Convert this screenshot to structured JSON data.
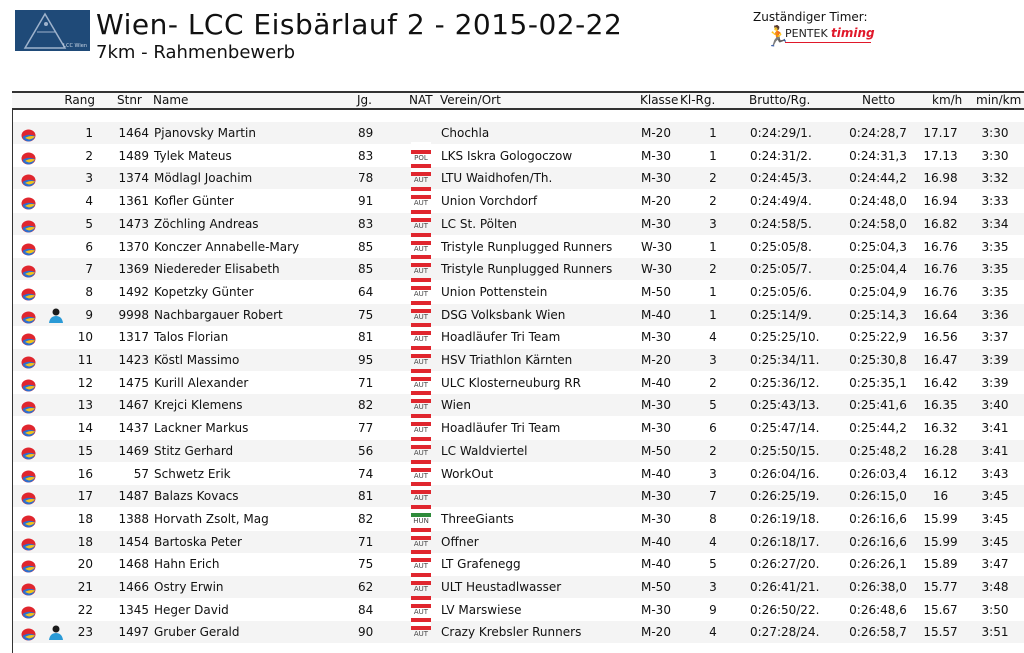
{
  "header": {
    "logo_text": "LCC Wien",
    "title": "Wien- LCC Eisbärlauf 2 - 2015-02-22",
    "subtitle": "7km - Rahmenbewerb",
    "timer_label": "Zuständiger Timer:",
    "timer_logo_text": "PENTEK timing"
  },
  "columns": [
    "Rang",
    "Stnr",
    "Name",
    "Jg.",
    "NAT",
    "Verein/Ort",
    "Klasse",
    "Kl-Rg.",
    "Brutto/Rg.",
    "Netto",
    "km/h",
    "min/km"
  ],
  "colors": {
    "AUT": "#e0262e",
    "POL": "#e0262e",
    "HUN": "#2e8b3a",
    "alt_row": "#f4f4f4"
  },
  "rows": [
    {
      "rang": "1",
      "stnr": "1464",
      "name": "Pjanovsky Martin",
      "jg": "89",
      "nat": "",
      "verein": "Chochla",
      "klasse": "M-20",
      "klrg": "1",
      "brutto": "0:24:29/1.",
      "netto": "0:24:28,7",
      "kmh": "17.17",
      "minkm": "3:30",
      "person": false
    },
    {
      "rang": "2",
      "stnr": "1489",
      "name": "Tylek Mateus",
      "jg": "83",
      "nat": "POL",
      "verein": "LKS Iskra Gologoczow",
      "klasse": "M-30",
      "klrg": "1",
      "brutto": "0:24:31/2.",
      "netto": "0:24:31,3",
      "kmh": "17.13",
      "minkm": "3:30",
      "person": false
    },
    {
      "rang": "3",
      "stnr": "1374",
      "name": "Mödlagl Joachim",
      "jg": "78",
      "nat": "AUT",
      "verein": "LTU Waidhofen/Th.",
      "klasse": "M-30",
      "klrg": "2",
      "brutto": "0:24:45/3.",
      "netto": "0:24:44,2",
      "kmh": "16.98",
      "minkm": "3:32",
      "person": false
    },
    {
      "rang": "4",
      "stnr": "1361",
      "name": "Kofler Günter",
      "jg": "91",
      "nat": "AUT",
      "verein": "Union Vorchdorf",
      "klasse": "M-20",
      "klrg": "2",
      "brutto": "0:24:49/4.",
      "netto": "0:24:48,0",
      "kmh": "16.94",
      "minkm": "3:33",
      "person": false
    },
    {
      "rang": "5",
      "stnr": "1473",
      "name": "Zöchling Andreas",
      "jg": "83",
      "nat": "AUT",
      "verein": "LC St. Pölten",
      "klasse": "M-30",
      "klrg": "3",
      "brutto": "0:24:58/5.",
      "netto": "0:24:58,0",
      "kmh": "16.82",
      "minkm": "3:34",
      "person": false
    },
    {
      "rang": "6",
      "stnr": "1370",
      "name": "Konczer Annabelle-Mary",
      "jg": "85",
      "nat": "AUT",
      "verein": "Tristyle Runplugged Runners",
      "klasse": "W-30",
      "klrg": "1",
      "brutto": "0:25:05/8.",
      "netto": "0:25:04,3",
      "kmh": "16.76",
      "minkm": "3:35",
      "person": false
    },
    {
      "rang": "7",
      "stnr": "1369",
      "name": "Niedereder Elisabeth",
      "jg": "85",
      "nat": "AUT",
      "verein": "Tristyle Runplugged Runners",
      "klasse": "W-30",
      "klrg": "2",
      "brutto": "0:25:05/7.",
      "netto": "0:25:04,4",
      "kmh": "16.76",
      "minkm": "3:35",
      "person": false
    },
    {
      "rang": "8",
      "stnr": "1492",
      "name": "Kopetzky Günter",
      "jg": "64",
      "nat": "AUT",
      "verein": "Union Pottenstein",
      "klasse": "M-50",
      "klrg": "1",
      "brutto": "0:25:05/6.",
      "netto": "0:25:04,9",
      "kmh": "16.76",
      "minkm": "3:35",
      "person": false
    },
    {
      "rang": "9",
      "stnr": "9998",
      "name": "Nachbargauer Robert",
      "jg": "75",
      "nat": "AUT",
      "verein": "DSG Volksbank Wien",
      "klasse": "M-40",
      "klrg": "1",
      "brutto": "0:25:14/9.",
      "netto": "0:25:14,3",
      "kmh": "16.64",
      "minkm": "3:36",
      "person": true
    },
    {
      "rang": "10",
      "stnr": "1317",
      "name": "Talos Florian",
      "jg": "81",
      "nat": "AUT",
      "verein": "Hoadläufer Tri Team",
      "klasse": "M-30",
      "klrg": "4",
      "brutto": "0:25:25/10.",
      "netto": "0:25:22,9",
      "kmh": "16.56",
      "minkm": "3:37",
      "person": false
    },
    {
      "rang": "11",
      "stnr": "1423",
      "name": "Köstl Massimo",
      "jg": "95",
      "nat": "AUT",
      "verein": "HSV Triathlon Kärnten",
      "klasse": "M-20",
      "klrg": "3",
      "brutto": "0:25:34/11.",
      "netto": "0:25:30,8",
      "kmh": "16.47",
      "minkm": "3:39",
      "person": false
    },
    {
      "rang": "12",
      "stnr": "1475",
      "name": "Kurill Alexander",
      "jg": "71",
      "nat": "AUT",
      "verein": "ULC Klosterneuburg RR",
      "klasse": "M-40",
      "klrg": "2",
      "brutto": "0:25:36/12.",
      "netto": "0:25:35,1",
      "kmh": "16.42",
      "minkm": "3:39",
      "person": false
    },
    {
      "rang": "13",
      "stnr": "1467",
      "name": "Krejci Klemens",
      "jg": "82",
      "nat": "AUT",
      "verein": "Wien",
      "klasse": "M-30",
      "klrg": "5",
      "brutto": "0:25:43/13.",
      "netto": "0:25:41,6",
      "kmh": "16.35",
      "minkm": "3:40",
      "person": false
    },
    {
      "rang": "14",
      "stnr": "1437",
      "name": "Lackner Markus",
      "jg": "77",
      "nat": "AUT",
      "verein": "Hoadläufer Tri Team",
      "klasse": "M-30",
      "klrg": "6",
      "brutto": "0:25:47/14.",
      "netto": "0:25:44,2",
      "kmh": "16.32",
      "minkm": "3:41",
      "person": false
    },
    {
      "rang": "15",
      "stnr": "1469",
      "name": "Stitz Gerhard",
      "jg": "56",
      "nat": "AUT",
      "verein": "LC Waldviertel",
      "klasse": "M-50",
      "klrg": "2",
      "brutto": "0:25:50/15.",
      "netto": "0:25:48,2",
      "kmh": "16.28",
      "minkm": "3:41",
      "person": false
    },
    {
      "rang": "16",
      "stnr": "57",
      "name": "Schwetz Erik",
      "jg": "74",
      "nat": "AUT",
      "verein": "WorkOut",
      "klasse": "M-40",
      "klrg": "3",
      "brutto": "0:26:04/16.",
      "netto": "0:26:03,4",
      "kmh": "16.12",
      "minkm": "3:43",
      "person": false
    },
    {
      "rang": "17",
      "stnr": "1487",
      "name": "Balazs Kovacs",
      "jg": "81",
      "nat": "AUT",
      "verein": "",
      "klasse": "M-30",
      "klrg": "7",
      "brutto": "0:26:25/19.",
      "netto": "0:26:15,0",
      "kmh": "16",
      "minkm": "3:45",
      "person": false
    },
    {
      "rang": "18",
      "stnr": "1388",
      "name": "Horvath Zsolt, Mag",
      "jg": "82",
      "nat": "HUN",
      "verein": "ThreeGiants",
      "klasse": "M-30",
      "klrg": "8",
      "brutto": "0:26:19/18.",
      "netto": "0:26:16,6",
      "kmh": "15.99",
      "minkm": "3:45",
      "person": false
    },
    {
      "rang": "18",
      "stnr": "1454",
      "name": "Bartoska Peter",
      "jg": "71",
      "nat": "AUT",
      "verein": "Offner",
      "klasse": "M-40",
      "klrg": "4",
      "brutto": "0:26:18/17.",
      "netto": "0:26:16,6",
      "kmh": "15.99",
      "minkm": "3:45",
      "person": false
    },
    {
      "rang": "20",
      "stnr": "1468",
      "name": "Hahn Erich",
      "jg": "75",
      "nat": "AUT",
      "verein": "LT Grafenegg",
      "klasse": "M-40",
      "klrg": "5",
      "brutto": "0:26:27/20.",
      "netto": "0:26:26,1",
      "kmh": "15.89",
      "minkm": "3:47",
      "person": false
    },
    {
      "rang": "21",
      "stnr": "1466",
      "name": "Ostry Erwin",
      "jg": "62",
      "nat": "AUT",
      "verein": "ULT Heustadlwasser",
      "klasse": "M-50",
      "klrg": "3",
      "brutto": "0:26:41/21.",
      "netto": "0:26:38,0",
      "kmh": "15.77",
      "minkm": "3:48",
      "person": false
    },
    {
      "rang": "22",
      "stnr": "1345",
      "name": "Heger David",
      "jg": "84",
      "nat": "AUT",
      "verein": "LV Marswiese",
      "klasse": "M-30",
      "klrg": "9",
      "brutto": "0:26:50/22.",
      "netto": "0:26:48,6",
      "kmh": "15.67",
      "minkm": "3:50",
      "person": false
    },
    {
      "rang": "23",
      "stnr": "1497",
      "name": "Gruber Gerald",
      "jg": "90",
      "nat": "AUT",
      "verein": "Crazy Krebsler Runners",
      "klasse": "M-20",
      "klrg": "4",
      "brutto": "0:27:28/24.",
      "netto": "0:26:58,7",
      "kmh": "15.57",
      "minkm": "3:51",
      "person": true
    }
  ]
}
